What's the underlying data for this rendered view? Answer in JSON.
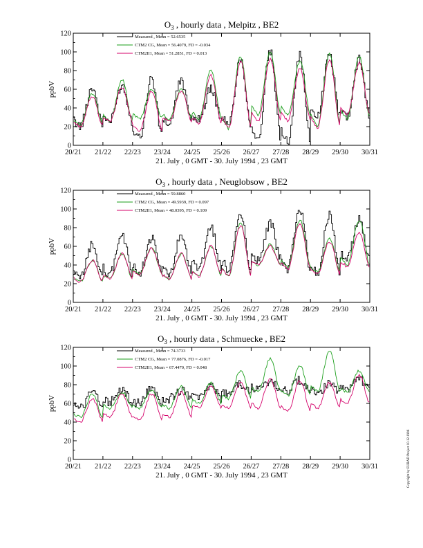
{
  "copyright": "Copyright by EURAD Project 10.12.1996",
  "colors": {
    "measured": "#000000",
    "cg": "#1a9e1a",
    "ctm": "#d4006a"
  },
  "chart_data": [
    {
      "type": "line",
      "title_prefix": "O",
      "title_sub": "3",
      "title_rest": " , hourly data , Melpitz , BE2",
      "xlabel": "21. July ,  0 GMT - 30. July 1994 , 23 GMT",
      "ylabel": "ppbV",
      "ylim": [
        0,
        120
      ],
      "yticks": [
        "0",
        "20",
        "40",
        "60",
        "80",
        "100",
        "120"
      ],
      "xticks": [
        "20/21",
        "21/22",
        "22/23",
        "23/24",
        "24/25",
        "25/26",
        "26/27",
        "27/28",
        "28/29",
        "29/30",
        "30/31"
      ],
      "legend": [
        "Measured      , Mean = 52.6535",
        "CTM2 CG, Mean = 56.4079, FD = -0.034",
        "CTM2II1, Mean = 51.2851, FD = 0.013"
      ],
      "series": [
        {
          "name": "Measured",
          "daily": [
            [
              20,
              62
            ],
            [
              25,
              64
            ],
            [
              8,
              72
            ],
            [
              22,
              70
            ],
            [
              28,
              60
            ],
            [
              20,
              92
            ],
            [
              5,
              100
            ],
            [
              3,
              96
            ],
            [
              30,
              96
            ],
            [
              30,
              92
            ]
          ]
        },
        {
          "name": "CTM2 CG",
          "daily": [
            [
              22,
              55
            ],
            [
              25,
              70
            ],
            [
              28,
              60
            ],
            [
              28,
              60
            ],
            [
              28,
              80
            ],
            [
              18,
              95
            ],
            [
              32,
              100
            ],
            [
              32,
              90
            ],
            [
              20,
              98
            ],
            [
              28,
              95
            ]
          ]
        },
        {
          "name": "CTM2II1",
          "daily": [
            [
              20,
              52
            ],
            [
              25,
              62
            ],
            [
              15,
              58
            ],
            [
              25,
              58
            ],
            [
              22,
              75
            ],
            [
              18,
              90
            ],
            [
              25,
              92
            ],
            [
              26,
              82
            ],
            [
              18,
              92
            ],
            [
              32,
              88
            ]
          ]
        }
      ]
    },
    {
      "type": "line",
      "title_prefix": "O",
      "title_sub": "3",
      "title_rest": " , hourly data , Neuglobsow , BE2",
      "xlabel": "21. July ,  0 GMT - 30. July 1994 , 23 GMT",
      "ylabel": "ppbV",
      "ylim": [
        0,
        120
      ],
      "yticks": [
        "0",
        "20",
        "40",
        "60",
        "80",
        "100",
        "120"
      ],
      "xticks": [
        "20/21",
        "21/22",
        "22/23",
        "23/24",
        "24/25",
        "25/26",
        "26/27",
        "27/28",
        "28/29",
        "29/30",
        "30/31"
      ],
      "legend": [
        "Measured      , Mean = 59.8860",
        "CTM2 CG, Mean = 49.5939, FD = 0.097",
        "CTM2II1, Mean = 48.0395, FD = 0.109"
      ],
      "series": [
        {
          "name": "Measured",
          "daily": [
            [
              25,
              62
            ],
            [
              30,
              72
            ],
            [
              32,
              68
            ],
            [
              30,
              70
            ],
            [
              35,
              80
            ],
            [
              35,
              92
            ],
            [
              45,
              85
            ],
            [
              35,
              100
            ],
            [
              30,
              95
            ],
            [
              45,
              90
            ]
          ]
        },
        {
          "name": "CTM2 CG",
          "daily": [
            [
              22,
              45
            ],
            [
              25,
              52
            ],
            [
              30,
              58
            ],
            [
              25,
              52
            ],
            [
              28,
              60
            ],
            [
              28,
              85
            ],
            [
              40,
              62
            ],
            [
              38,
              88
            ],
            [
              32,
              68
            ],
            [
              40,
              88
            ]
          ]
        },
        {
          "name": "CTM2II1",
          "daily": [
            [
              22,
              45
            ],
            [
              25,
              52
            ],
            [
              30,
              58
            ],
            [
              25,
              52
            ],
            [
              28,
              60
            ],
            [
              28,
              82
            ],
            [
              40,
              60
            ],
            [
              35,
              85
            ],
            [
              30,
              65
            ],
            [
              38,
              75
            ]
          ]
        }
      ]
    },
    {
      "type": "line",
      "title_prefix": "O",
      "title_sub": "3",
      "title_rest": " , hourly data , Schmuecke , BE2",
      "xlabel": "21. July ,  0 GMT - 30. July 1994 , 23 GMT",
      "ylabel": "ppbV",
      "ylim": [
        0,
        120
      ],
      "yticks": [
        "0",
        "20",
        "40",
        "60",
        "80",
        "100",
        "120"
      ],
      "xticks": [
        "20/21",
        "21/22",
        "22/23",
        "23/24",
        "24/25",
        "25/26",
        "26/27",
        "27/28",
        "28/29",
        "29/30",
        "30/31"
      ],
      "legend": [
        "Measured      , Mean = 74.3733",
        "CTM2 CG, Mean = 77.0876, FD = -0.017",
        "CTM2II1, Mean = 67.4470, FD = 0.048"
      ],
      "series": [
        {
          "name": "Measured",
          "daily": [
            [
              55,
              72
            ],
            [
              62,
              74
            ],
            [
              60,
              76
            ],
            [
              65,
              74
            ],
            [
              65,
              78
            ],
            [
              72,
              80
            ],
            [
              75,
              84
            ],
            [
              74,
              85
            ],
            [
              72,
              82
            ],
            [
              76,
              86
            ]
          ]
        },
        {
          "name": "CTM2 CG",
          "daily": [
            [
              45,
              70
            ],
            [
              55,
              72
            ],
            [
              55,
              74
            ],
            [
              55,
              78
            ],
            [
              60,
              82
            ],
            [
              65,
              95
            ],
            [
              72,
              108
            ],
            [
              68,
              100
            ],
            [
              72,
              116
            ],
            [
              72,
              95
            ]
          ]
        },
        {
          "name": "CTM2II1",
          "daily": [
            [
              40,
              65
            ],
            [
              45,
              70
            ],
            [
              42,
              70
            ],
            [
              45,
              72
            ],
            [
              55,
              78
            ],
            [
              55,
              82
            ],
            [
              55,
              86
            ],
            [
              52,
              84
            ],
            [
              55,
              82
            ],
            [
              60,
              90
            ]
          ]
        }
      ]
    }
  ]
}
